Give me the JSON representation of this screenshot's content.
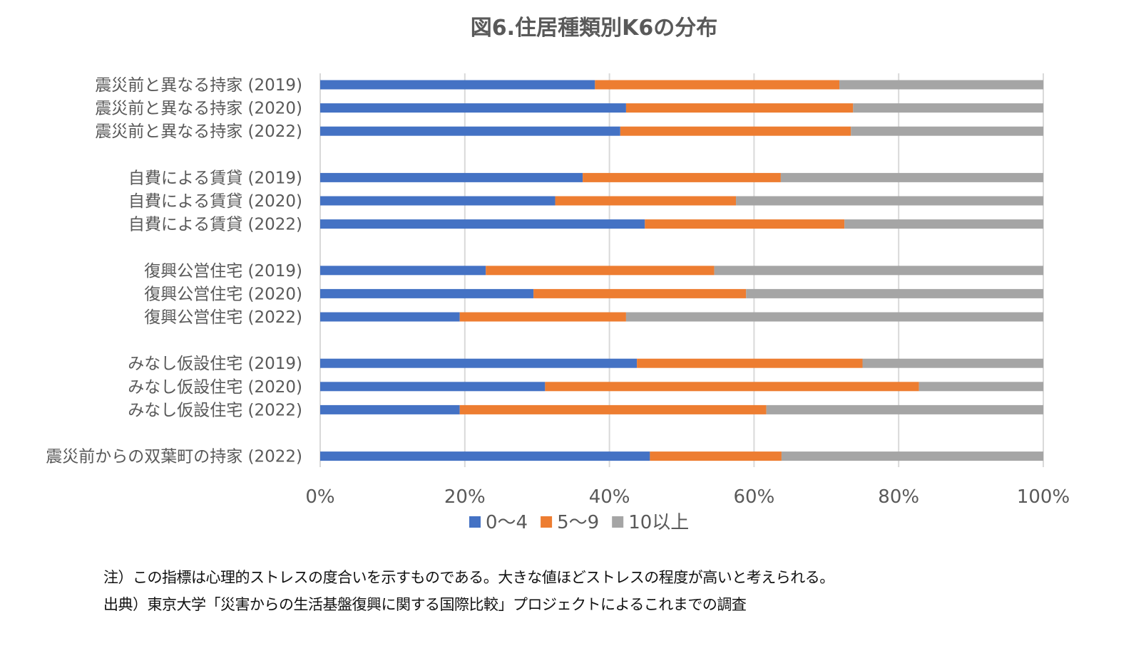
{
  "chart_data": {
    "type": "bar",
    "orientation": "horizontal",
    "stacked": "percent",
    "title": "図6.住居種類別K6の分布",
    "categories": [
      "震災前と異なる持家 (2019)",
      "震災前と異なる持家 (2020)",
      "震災前と異なる持家 (2022)",
      "自費による賃貸 (2019)",
      "自費による賃貸 (2020)",
      "自費による賃貸 (2022)",
      "復興公営住宅 (2019)",
      "復興公営住宅 (2020)",
      "復興公営住宅 (2022)",
      "みなし仮設住宅 (2019)",
      "みなし仮設住宅 (2020)",
      "みなし仮設住宅 (2022)",
      "震災前からの双葉町の持家 (2022)"
    ],
    "groups": [
      [
        0,
        1,
        2
      ],
      [
        3,
        4,
        5
      ],
      [
        6,
        7,
        8
      ],
      [
        9,
        10,
        11
      ],
      [
        12
      ]
    ],
    "series": [
      {
        "name": "0～4",
        "color": "#4472C4",
        "values": [
          38.0,
          42.3,
          41.5,
          36.3,
          32.5,
          44.9,
          22.9,
          29.5,
          19.3,
          43.8,
          31.1,
          19.3,
          45.6
        ]
      },
      {
        "name": "5～9",
        "color": "#ED7D31",
        "values": [
          33.8,
          31.4,
          31.9,
          27.4,
          25.0,
          27.6,
          31.6,
          29.4,
          23.0,
          31.2,
          51.7,
          42.4,
          18.2
        ]
      },
      {
        "name": "10以上",
        "color": "#A5A5A5",
        "values": [
          28.2,
          26.3,
          26.6,
          36.3,
          42.5,
          27.5,
          45.5,
          41.1,
          57.7,
          25.0,
          17.2,
          38.3,
          36.2
        ]
      }
    ],
    "xlim": [
      0,
      100
    ],
    "x_ticks": [
      0,
      20,
      40,
      60,
      80,
      100
    ],
    "x_tick_labels": [
      "0%",
      "20%",
      "40%",
      "60%",
      "80%",
      "100%"
    ],
    "grid": "vertical",
    "legend_position": "bottom"
  },
  "notes": {
    "note": "注）この指標は心理的ストレスの度合いを示すものである。大きな値ほどストレスの程度が高いと考えられる。",
    "source": "出典）東京大学「災害からの生活基盤復興に関する国際比較」プロジェクトによるこれまでの調査"
  }
}
